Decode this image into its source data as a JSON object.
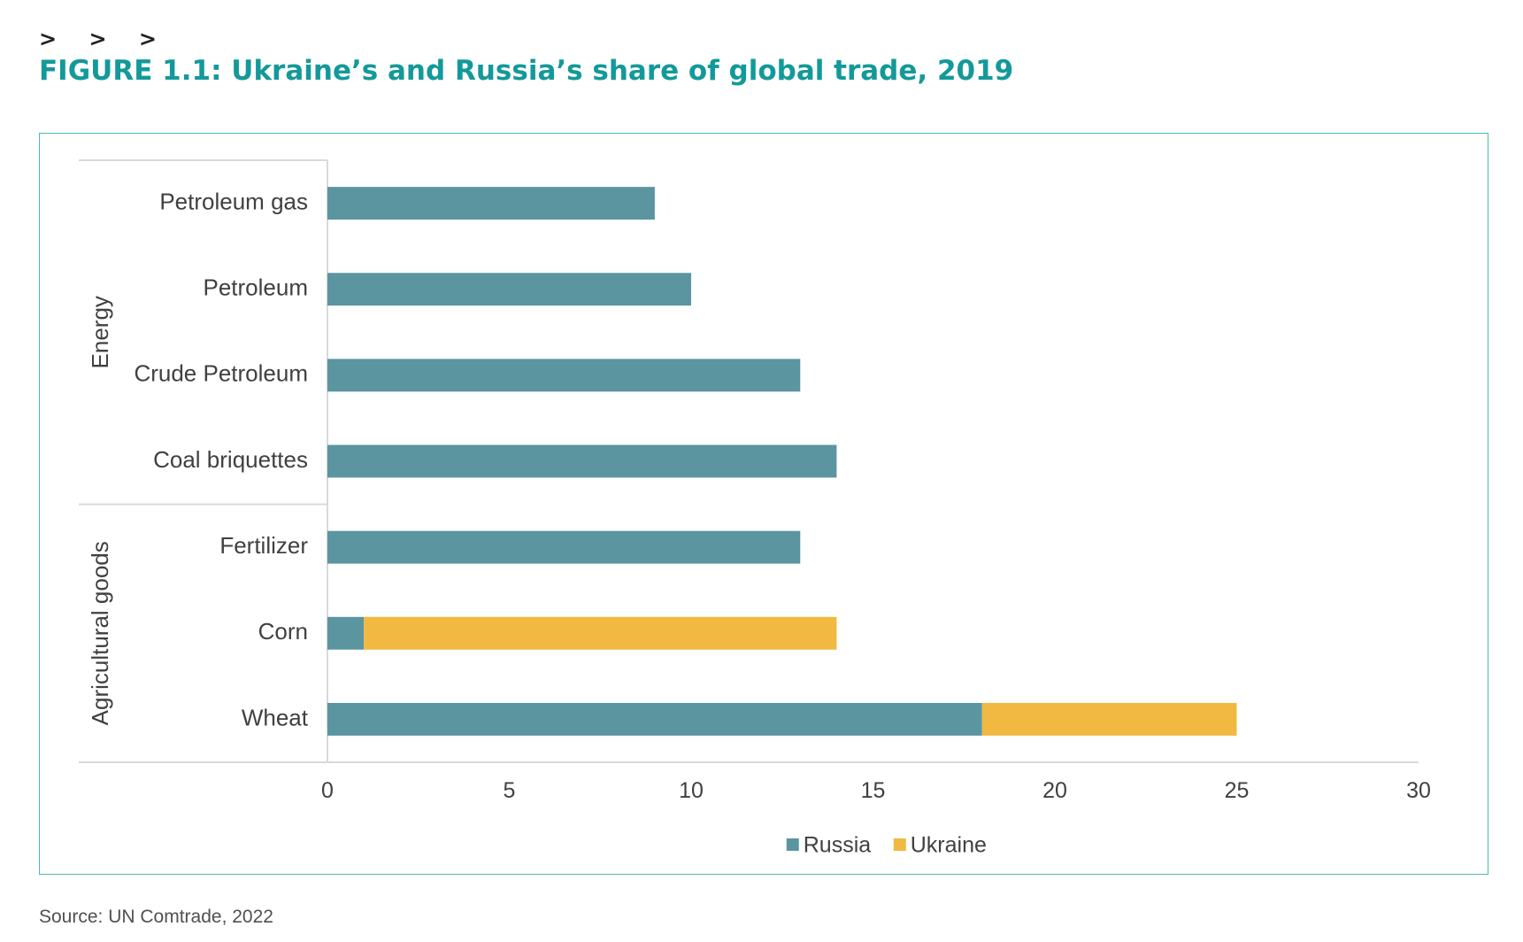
{
  "header": {
    "chevrons": "> > >",
    "title": "FIGURE 1.1: Ukraine’s and Russia’s share of global trade, 2019"
  },
  "source": "Source: UN Comtrade, 2022",
  "colors": {
    "russia": "#5b95a0",
    "ukraine": "#f1b842",
    "frame": "#4fb8b7",
    "title": "#14999a",
    "axis": "#d9d9d9",
    "text": "#404040"
  },
  "chart_data": {
    "type": "bar",
    "orientation": "horizontal",
    "stacked": true,
    "title": "",
    "xlabel": "",
    "ylabel": "",
    "xlim": [
      0,
      30
    ],
    "xticks": [
      0,
      5,
      10,
      15,
      20,
      25,
      30
    ],
    "grid": false,
    "legend_position": "bottom",
    "categories": [
      "Petroleum gas",
      "Petroleum",
      "Crude Petroleum",
      "Coal briquettes",
      "Fertilizer",
      "Corn",
      "Wheat"
    ],
    "groups": [
      {
        "name": "Energy",
        "categories": [
          "Petroleum gas",
          "Petroleum",
          "Crude Petroleum",
          "Coal briquettes"
        ]
      },
      {
        "name": "Agricultural goods",
        "categories": [
          "Fertilizer",
          "Corn",
          "Wheat"
        ]
      }
    ],
    "series": [
      {
        "name": "Russia",
        "color": "#5b95a0",
        "values": [
          9,
          10,
          13,
          14,
          13,
          1,
          18
        ]
      },
      {
        "name": "Ukraine",
        "color": "#f1b842",
        "values": [
          0,
          0,
          0,
          0,
          0,
          13,
          7
        ]
      }
    ]
  }
}
